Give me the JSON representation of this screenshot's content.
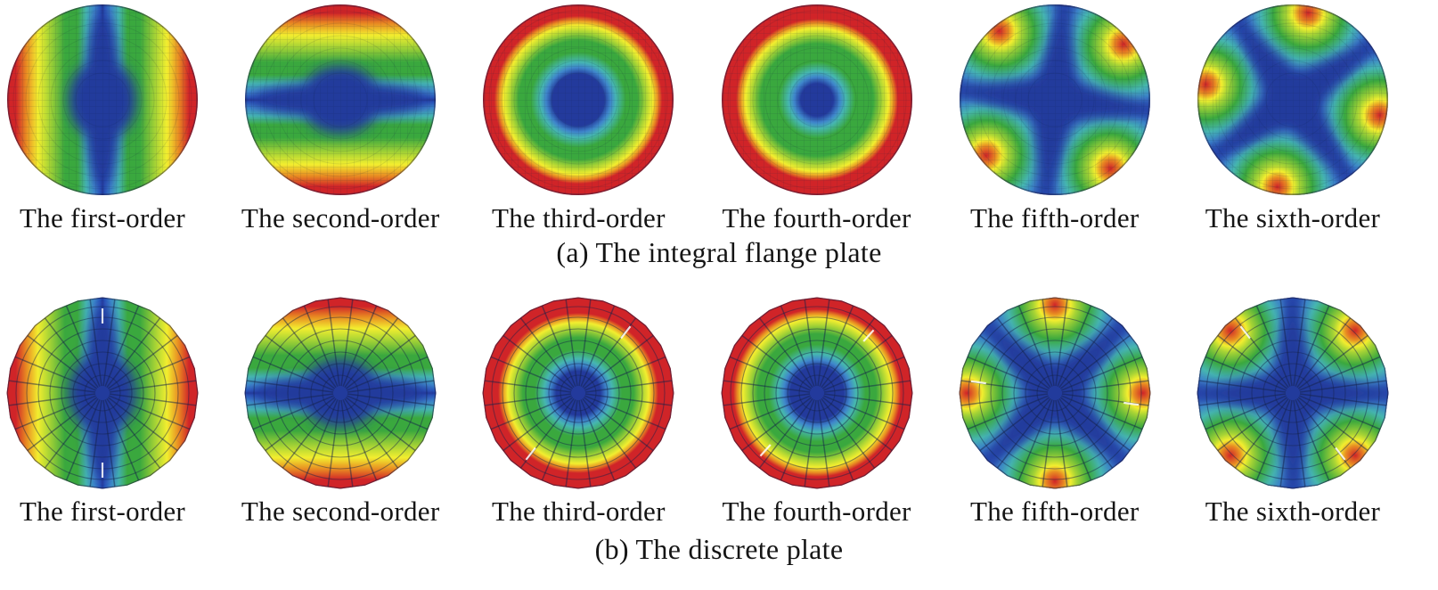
{
  "figure": {
    "description": "Mode shapes (first to sixth order) of two circular plates, FEA rainbow displacement contour plots",
    "colormap": {
      "dark_blue": "#233a9c",
      "blue": "#2b55bb",
      "light_blue": "#3f86cb",
      "cyan": "#46b6b0",
      "green": "#3aa83e",
      "yellow_green": "#a6d335",
      "yellow": "#f2ee2f",
      "orange": "#e88c22",
      "red": "#d02428"
    },
    "rows": [
      {
        "id": "a",
        "caption": "(a) The integral flange plate",
        "mesh": "fine",
        "cells": [
          {
            "label": "The first-order",
            "mode": {
              "type": "diametral",
              "angle": 0
            }
          },
          {
            "label": "The second-order",
            "mode": {
              "type": "diametral",
              "angle": 90
            }
          },
          {
            "label": "The third-order",
            "mode": {
              "type": "radial",
              "core": 0.27,
              "red_start": 0.88
            }
          },
          {
            "label": "The fourth-order",
            "mode": {
              "type": "radial",
              "core": 0.17,
              "red_start": 0.85
            }
          },
          {
            "label": "The fifth-order",
            "mode": {
              "type": "cross",
              "lobe_angles": [
                45,
                135,
                225,
                315
              ],
              "rotation": 6
            }
          },
          {
            "label": "The sixth-order",
            "mode": {
              "type": "cross",
              "lobe_angles": [
                0,
                90,
                180,
                270
              ],
              "rotation": 10
            }
          }
        ]
      },
      {
        "id": "b",
        "caption": "(b) The discrete plate",
        "mesh": "polar",
        "cells": [
          {
            "label": "The first-order",
            "mode": {
              "type": "diametral",
              "angle": 0,
              "ticks": [
                -90,
                90
              ]
            }
          },
          {
            "label": "The second-order",
            "mode": {
              "type": "diametral",
              "angle": 90,
              "ticks": []
            }
          },
          {
            "label": "The third-order",
            "mode": {
              "type": "radial",
              "core": 0.23,
              "red_start": 0.84,
              "ticks": [
                -52,
                128
              ]
            }
          },
          {
            "label": "The fourth-order",
            "mode": {
              "type": "radial",
              "core": 0.28,
              "red_start": 0.88,
              "ticks": [
                -48,
                132
              ]
            }
          },
          {
            "label": "The fifth-order",
            "mode": {
              "type": "cross",
              "lobe_angles": [
                0,
                90,
                180,
                270
              ],
              "rotation": 0,
              "ticks": [
                8,
                188
              ]
            }
          },
          {
            "label": "The sixth-order",
            "mode": {
              "type": "cross",
              "lobe_angles": [
                45,
                135,
                225,
                315
              ],
              "rotation": 0,
              "ticks": [
                -128,
                52
              ]
            }
          }
        ]
      }
    ]
  }
}
